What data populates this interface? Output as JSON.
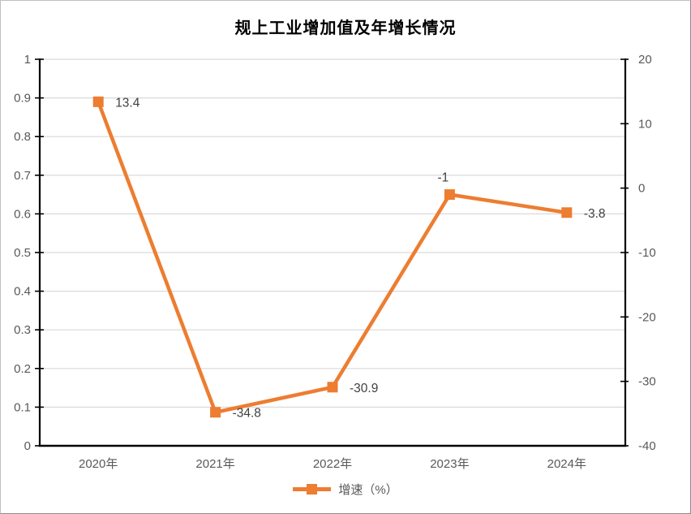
{
  "chart_data": {
    "type": "line",
    "title": "规上工业增加值及年增长情况",
    "categories": [
      "2020年",
      "2021年",
      "2022年",
      "2023年",
      "2024年"
    ],
    "series": [
      {
        "name": "增速（%）",
        "values": [
          13.4,
          -34.8,
          -30.9,
          -1,
          -3.8
        ],
        "color": "#ED7D31",
        "axis": "right"
      }
    ],
    "data_labels": [
      "13.4",
      "-34.8",
      "-30.9",
      "-1",
      "-3.8"
    ],
    "label_positions": [
      "right",
      "right",
      "right",
      "above",
      "right"
    ],
    "left_axis": {
      "min": 0,
      "max": 1,
      "step": 0.1,
      "tick_labels": [
        "0",
        "0.1",
        "0.2",
        "0.3",
        "0.4",
        "0.5",
        "0.6",
        "0.7",
        "0.8",
        "0.9",
        "1"
      ]
    },
    "right_axis": {
      "min": -40,
      "max": 20,
      "step": 10,
      "tick_labels": [
        "-40",
        "-30",
        "-20",
        "-10",
        "0",
        "10",
        "20"
      ]
    },
    "grid": true,
    "legend": {
      "position": "bottom",
      "entries": [
        {
          "label": "增速（%）",
          "color": "#ED7D31"
        }
      ]
    },
    "colors": {
      "grid": "#D9D9D9",
      "axis": "#000000",
      "tick_label": "#595959",
      "data_label": "#404040",
      "title": "#000000",
      "series": "#ED7D31"
    }
  }
}
